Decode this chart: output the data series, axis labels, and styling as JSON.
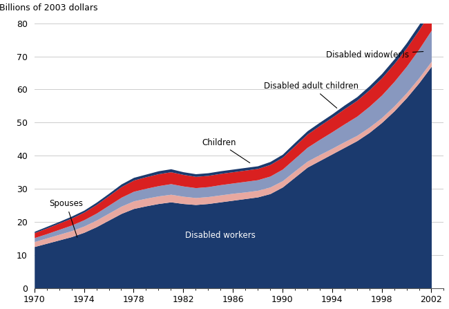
{
  "years": [
    1970,
    1971,
    1972,
    1973,
    1974,
    1975,
    1976,
    1977,
    1978,
    1979,
    1980,
    1981,
    1982,
    1983,
    1984,
    1985,
    1986,
    1987,
    1988,
    1989,
    1990,
    1991,
    1992,
    1993,
    1994,
    1995,
    1996,
    1997,
    1998,
    1999,
    2000,
    2001,
    2002
  ],
  "disabled_workers": [
    12.5,
    13.5,
    14.5,
    15.5,
    16.8,
    18.5,
    20.5,
    22.5,
    24.0,
    24.8,
    25.5,
    26.0,
    25.5,
    25.2,
    25.5,
    26.0,
    26.5,
    27.0,
    27.5,
    28.5,
    30.5,
    33.5,
    36.5,
    38.5,
    40.5,
    42.5,
    44.5,
    47.0,
    50.0,
    53.5,
    57.5,
    62.0,
    67.0
  ],
  "spouses": [
    1.5,
    1.6,
    1.7,
    1.8,
    1.9,
    2.0,
    2.1,
    2.2,
    2.3,
    2.3,
    2.3,
    2.3,
    2.2,
    2.1,
    2.1,
    2.1,
    2.1,
    2.0,
    2.0,
    2.0,
    1.9,
    1.9,
    1.8,
    1.8,
    1.7,
    1.7,
    1.6,
    1.6,
    1.5,
    1.5,
    1.5,
    1.5,
    1.5
  ],
  "disabled_adult_children": [
    1.2,
    1.3,
    1.5,
    1.7,
    1.9,
    2.1,
    2.4,
    2.7,
    2.9,
    3.0,
    3.1,
    3.2,
    3.1,
    3.0,
    3.0,
    3.1,
    3.1,
    3.2,
    3.2,
    3.3,
    3.5,
    3.8,
    4.2,
    4.6,
    5.0,
    5.4,
    5.8,
    6.3,
    6.8,
    7.4,
    8.0,
    8.7,
    9.4
  ],
  "children": [
    1.5,
    1.7,
    1.9,
    2.1,
    2.3,
    2.6,
    2.9,
    3.2,
    3.4,
    3.5,
    3.6,
    3.6,
    3.5,
    3.4,
    3.4,
    3.4,
    3.4,
    3.4,
    3.4,
    3.5,
    3.6,
    3.8,
    4.0,
    4.2,
    4.4,
    4.6,
    4.8,
    5.0,
    5.2,
    5.4,
    5.6,
    5.8,
    6.0
  ],
  "disabled_widowers": [
    0.4,
    0.5,
    0.5,
    0.6,
    0.6,
    0.7,
    0.7,
    0.8,
    0.8,
    0.8,
    0.9,
    0.9,
    0.8,
    0.8,
    0.8,
    0.8,
    0.8,
    0.8,
    0.8,
    0.9,
    0.9,
    1.0,
    1.0,
    1.0,
    1.0,
    1.1,
    1.1,
    1.2,
    1.3,
    1.4,
    1.5,
    1.6,
    1.8
  ],
  "color_disabled_workers": "#1b3a6e",
  "color_spouses": "#e8a8a0",
  "color_disabled_adult_children": "#8898bf",
  "color_children": "#d92020",
  "color_disabled_widowers": "#1b3a6e",
  "ylabel": "Billions of 2003 dollars",
  "ylim": [
    0,
    80
  ],
  "xlim": [
    1970,
    2003
  ],
  "xticks": [
    1970,
    1974,
    1978,
    1982,
    1986,
    1990,
    1994,
    1998,
    2002
  ],
  "yticks": [
    0,
    10,
    20,
    30,
    40,
    50,
    60,
    70,
    80
  ]
}
